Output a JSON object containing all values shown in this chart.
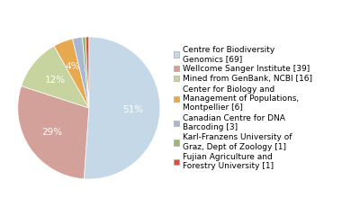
{
  "labels": [
    "Centre for Biodiversity\nGenomics [69]",
    "Wellcome Sanger Institute [39]",
    "Mined from GenBank, NCBI [16]",
    "Center for Biology and\nManagement of Populations,\nMontpellier [6]",
    "Canadian Centre for DNA\nBarcoding [3]",
    "Karl-Franzens University of\nGraz, Dept of Zoology [1]",
    "Fujian Agriculture and\nForestry University [1]"
  ],
  "values": [
    69,
    39,
    16,
    6,
    3,
    1,
    1
  ],
  "slice_colors": [
    "#c5d8e8",
    "#d4a09a",
    "#c8d4a0",
    "#e8a850",
    "#a8b8d0",
    "#9ab87a",
    "#cc5544"
  ],
  "legend_colors": [
    "#c5d8e8",
    "#d4a09a",
    "#c8d4a0",
    "#e8a850",
    "#a8b8d0",
    "#9ab87a",
    "#cc5544"
  ],
  "background_color": "#ffffff",
  "label_fontsize": 6.5,
  "pct_fontsize": 7.5,
  "pct_color": "white"
}
